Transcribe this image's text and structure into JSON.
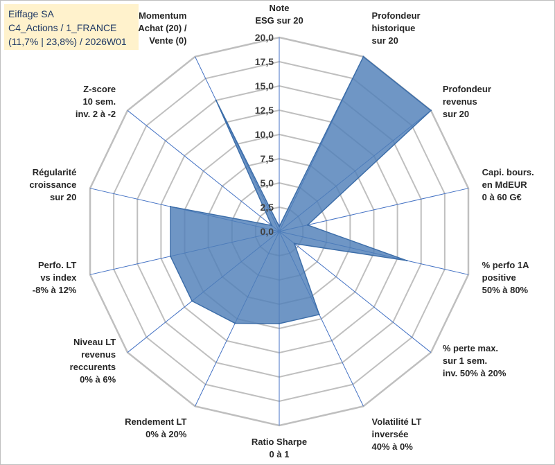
{
  "header": {
    "line1": "Eiffage SA",
    "line2": "C4_Actions / 1_FRANCE",
    "line3": "(11,7% | 23,8%) / 2026W01"
  },
  "colors": {
    "fill": "#4f7fb8",
    "stroke": "#3d6ea9",
    "grid": "#bfbfbf",
    "axis": "#4472c4",
    "title_bg": "#fff2cc"
  },
  "chart_data": {
    "type": "radar",
    "title": "",
    "rmin": 0,
    "rmax": 20,
    "tick_step": 2.5,
    "tick_labels": [
      "0,0",
      "2,5",
      "5,0",
      "7,5",
      "10,0",
      "12,5",
      "15,0",
      "17,5",
      "20,0"
    ],
    "categories": [
      [
        "Note",
        "ESG sur 20"
      ],
      [
        "Profondeur",
        "historique",
        "sur 20"
      ],
      [
        "Profondeur",
        "revenus",
        "sur 20"
      ],
      [
        "Capi. bours.",
        "en MdEUR",
        "0 à 60 G€"
      ],
      [
        "% perfo 1A",
        "positive",
        "50% à 80%"
      ],
      [
        "% perte max.",
        "sur 1 sem.",
        "inv. 50% à 20%"
      ],
      [
        "Volatilité LT",
        "inversée",
        "40% à 0%"
      ],
      [
        "Ratio Sharpe",
        "0 à 1"
      ],
      [
        "Rendement LT",
        "0% à 20%"
      ],
      [
        "Niveau LT",
        "revenus",
        "reccurents",
        "0% à 6%"
      ],
      [
        "Perfo. LT",
        "vs index",
        "-8% à 12%"
      ],
      [
        "Régularité",
        "croissance",
        "sur 20"
      ],
      [
        "Z-score",
        "10 sem.",
        "inv. 2 à -2"
      ],
      [
        "Momentum",
        "Achat (20) /",
        "Vente (0)"
      ]
    ],
    "series": [
      {
        "name": "Eiffage SA",
        "values": [
          0.5,
          20,
          20,
          3.0,
          13.5,
          2.0,
          9.5,
          9.5,
          10.5,
          11.5,
          11.5,
          11.5,
          1.0,
          15.0
        ]
      }
    ]
  }
}
